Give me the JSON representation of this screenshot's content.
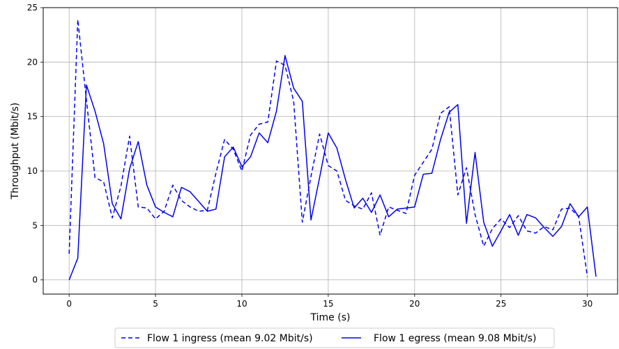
{
  "chart_data": {
    "type": "line",
    "xlabel": "Time (s)",
    "ylabel": "Throughput (Mbit/s)",
    "xlim": [
      -1.5,
      31.75
    ],
    "ylim": [
      -1.3,
      25
    ],
    "grid": true,
    "legend_position": "bottom-center",
    "x_ticks": [
      0,
      5,
      10,
      15,
      20,
      25,
      30
    ],
    "y_ticks": [
      0,
      5,
      10,
      15,
      20,
      25
    ],
    "series": [
      {
        "name": "Flow 1 ingress (mean 9.02 Mbit/s)",
        "style": "dashed",
        "color": "#0000ee",
        "x": [
          0,
          0.5,
          1,
          1.5,
          2,
          2.5,
          3,
          3.5,
          4,
          4.5,
          5,
          5.5,
          6,
          6.5,
          7,
          7.5,
          8,
          8.5,
          9,
          9.5,
          10,
          10.5,
          11,
          11.5,
          12,
          12.5,
          13,
          13.5,
          14,
          14.5,
          15,
          15.5,
          16,
          16.5,
          17,
          17.5,
          18,
          18.5,
          19,
          19.5,
          20,
          20.5,
          21,
          21.5,
          22,
          22.5,
          23,
          23.5,
          24,
          24.5,
          25,
          25.5,
          26,
          26.5,
          27,
          27.5,
          28,
          28.5,
          29,
          29.5,
          30
        ],
        "y": [
          2.4,
          23.9,
          16.5,
          9.4,
          9.0,
          5.7,
          8.6,
          13.2,
          6.7,
          6.6,
          5.6,
          6.3,
          8.7,
          7.3,
          6.7,
          6.3,
          6.4,
          9.8,
          12.9,
          12.0,
          10.0,
          13.3,
          14.3,
          14.5,
          20.1,
          19.7,
          16.4,
          5.3,
          9.5,
          13.4,
          10.5,
          10.0,
          7.3,
          6.8,
          6.5,
          8.0,
          4.1,
          6.7,
          6.4,
          6.1,
          9.6,
          10.8,
          12.0,
          15.3,
          15.9,
          7.8,
          10.3,
          6.0,
          3.1,
          4.7,
          5.6,
          4.8,
          5.9,
          4.5,
          4.3,
          4.9,
          4.6,
          6.5,
          6.6,
          5.8,
          0.3
        ]
      },
      {
        "name": "Flow 1 egress (mean 9.08 Mbit/s)",
        "style": "solid",
        "color": "#0000ee",
        "x": [
          0,
          0.5,
          1,
          1.5,
          2,
          2.5,
          3,
          3.5,
          4,
          4.5,
          5,
          5.5,
          6,
          6.5,
          7,
          7.5,
          8,
          8.5,
          9,
          9.5,
          10,
          10.5,
          11,
          11.5,
          12,
          12.5,
          13,
          13.5,
          14,
          14.5,
          15,
          15.5,
          16,
          16.5,
          17,
          17.5,
          18,
          18.5,
          19,
          19.5,
          20,
          20.5,
          21,
          21.5,
          22,
          22.5,
          23,
          23.5,
          24,
          24.5,
          25,
          25.5,
          26,
          26.5,
          27,
          27.5,
          28,
          28.5,
          29,
          29.5,
          30,
          30.5
        ],
        "y": [
          0.0,
          2.0,
          17.9,
          15.5,
          12.5,
          7.0,
          5.6,
          10.2,
          12.7,
          8.7,
          6.7,
          6.2,
          5.8,
          8.5,
          8.1,
          7.2,
          6.3,
          6.5,
          11.3,
          12.2,
          10.4,
          11.3,
          13.5,
          12.6,
          15.5,
          20.6,
          17.6,
          16.4,
          5.5,
          9.4,
          13.5,
          12.1,
          9.2,
          6.6,
          7.5,
          6.2,
          7.8,
          5.8,
          6.5,
          6.6,
          6.7,
          9.7,
          9.8,
          12.9,
          15.4,
          16.1,
          5.2,
          11.7,
          5.3,
          3.1,
          4.5,
          6.0,
          4.1,
          6.0,
          5.7,
          4.8,
          4.0,
          4.9,
          7.0,
          5.8,
          6.7,
          0.3
        ]
      }
    ]
  }
}
